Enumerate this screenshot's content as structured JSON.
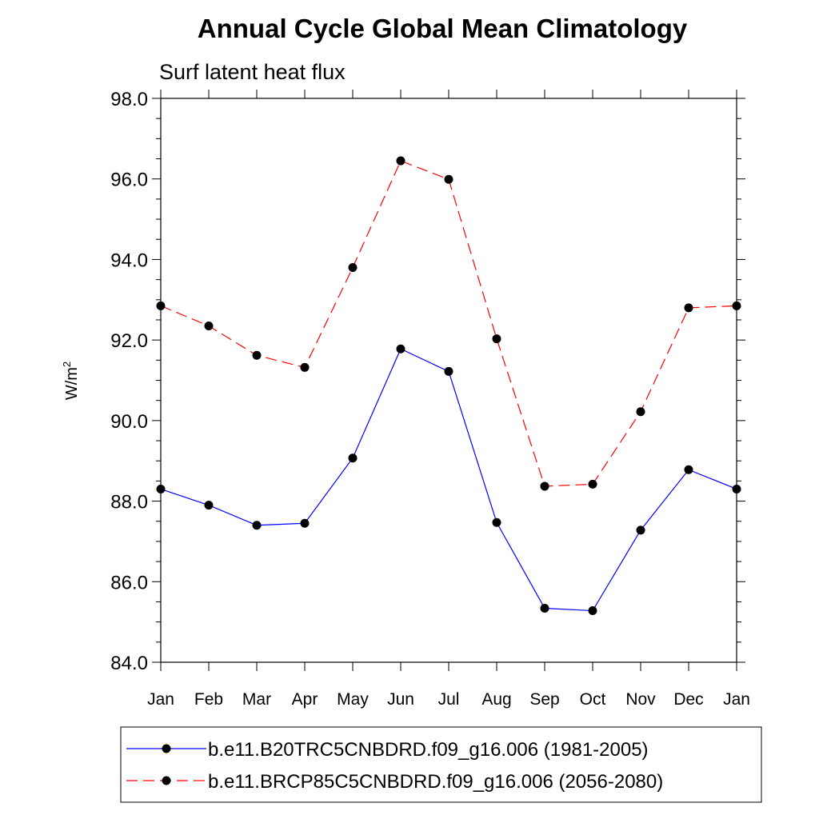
{
  "chart_data": {
    "type": "line",
    "title": "Annual Cycle Global Mean Climatology",
    "subtitle": "Surf latent heat flux",
    "ylabel": "W/m",
    "ylabel_superscript": "2",
    "xlabel": "",
    "categories": [
      "Jan",
      "Feb",
      "Mar",
      "Apr",
      "May",
      "Jun",
      "Jul",
      "Aug",
      "Sep",
      "Oct",
      "Nov",
      "Dec",
      "Jan"
    ],
    "ylim": [
      84.0,
      98.0
    ],
    "yticks": [
      "84.0",
      "86.0",
      "88.0",
      "90.0",
      "92.0",
      "94.0",
      "96.0",
      "98.0"
    ],
    "grid": false,
    "legend_position": "bottom",
    "series": [
      {
        "name": "b.e11.B20TRC5CNBDRD.f09_g16.006 (1981-2005)",
        "values": [
          88.3,
          87.9,
          87.4,
          87.45,
          89.07,
          91.78,
          91.22,
          87.47,
          85.34,
          85.28,
          87.28,
          88.78,
          88.3
        ],
        "color": "#0000ff",
        "dash": "solid"
      },
      {
        "name": "b.e11.BRCP85C5CNBDRD.f09_g16.006 (2056-2080)",
        "values": [
          92.85,
          92.35,
          91.62,
          91.32,
          93.8,
          96.45,
          95.99,
          92.03,
          88.37,
          88.42,
          90.22,
          92.8,
          92.85
        ],
        "color": "#ff0000",
        "dash": "dashed"
      }
    ]
  }
}
